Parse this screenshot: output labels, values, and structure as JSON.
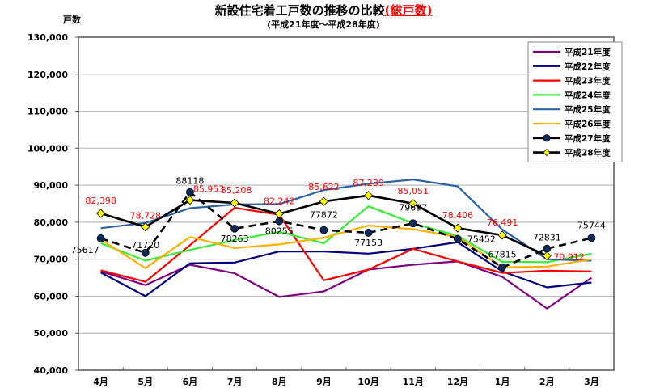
{
  "chart_data": {
    "type": "line",
    "title": "新設住宅着工戸数の推移の比較",
    "title_accent": "(総戸数)",
    "subtitle": "(平成21年度～平成28年度)",
    "ylabel": "戸数",
    "xlabel": "",
    "ylim": [
      40000,
      130000
    ],
    "yticks": [
      40000,
      50000,
      60000,
      70000,
      80000,
      90000,
      100000,
      110000,
      120000,
      130000
    ],
    "ytick_labels": [
      "40,000",
      "50,000",
      "60,000",
      "70,000",
      "80,000",
      "90,000",
      "100,000",
      "110,000",
      "120,000",
      "130,000"
    ],
    "grid": true,
    "legend_position": "top-right",
    "categories": [
      "4月",
      "5月",
      "6月",
      "7月",
      "8月",
      "9月",
      "10月",
      "11月",
      "12月",
      "1月",
      "2月",
      "3月"
    ],
    "series": [
      {
        "name": "平成21年度",
        "color": "#800080",
        "style": "solid",
        "marker": "none",
        "values": [
          66700,
          63000,
          68500,
          66200,
          59800,
          61300,
          67200,
          68500,
          69400,
          65200,
          56700,
          65000
        ]
      },
      {
        "name": "平成22年度",
        "color": "#000080",
        "style": "solid",
        "marker": "none",
        "values": [
          66400,
          60000,
          68900,
          69100,
          72100,
          72100,
          71500,
          72800,
          74600,
          66700,
          62400,
          63700
        ]
      },
      {
        "name": "平成23年度",
        "color": "#ff0000",
        "style": "solid",
        "marker": "none",
        "values": [
          67000,
          63900,
          73800,
          83900,
          82000,
          64300,
          67200,
          72800,
          69400,
          66300,
          66900,
          66700
        ]
      },
      {
        "name": "平成24年度",
        "color": "#33ee33",
        "style": "solid",
        "marker": "none",
        "values": [
          74300,
          69600,
          72500,
          75200,
          77400,
          74300,
          84300,
          79700,
          76300,
          69300,
          69200,
          71500
        ]
      },
      {
        "name": "平成25年度",
        "color": "#2a62a8",
        "style": "solid",
        "marker": "none",
        "values": [
          78400,
          79800,
          83800,
          84800,
          84900,
          88700,
          90400,
          91500,
          89700,
          78000,
          70000,
          69600
        ]
      },
      {
        "name": "平成26年度",
        "color": "#ffb000",
        "style": "solid",
        "marker": "none",
        "values": [
          75300,
          67600,
          76000,
          73000,
          74000,
          75800,
          79100,
          78100,
          76000,
          67800,
          68000,
          70000
        ]
      },
      {
        "name": "平成27年度",
        "color": "#000000",
        "style": "dashed",
        "marker": "circle",
        "marker_color": "#0d2a5c",
        "values": [
          75617,
          71720,
          88118,
          78263,
          80255,
          77872,
          77153,
          79697,
          75452,
          67815,
          72831,
          75744
        ],
        "labels": [
          "75617",
          "71720",
          "88118",
          "78263",
          "80255",
          "77872",
          "77153",
          "79697",
          "75452",
          "67815",
          "72831",
          "75744"
        ],
        "label_color": "#000000"
      },
      {
        "name": "平成28年度",
        "color": "#000000",
        "style": "solid",
        "marker": "diamond",
        "marker_color": "#ffff00",
        "values": [
          82398,
          78728,
          85953,
          85208,
          82242,
          85622,
          87239,
          85051,
          78406,
          76491,
          70912,
          null
        ],
        "labels": [
          "82,398",
          "78,728",
          "85,953",
          "85,208",
          "82,242",
          "85,622",
          "87,239",
          "85,051",
          "78,406",
          "76,491",
          "70,912",
          null
        ],
        "label_color": "#ff0000"
      }
    ]
  }
}
